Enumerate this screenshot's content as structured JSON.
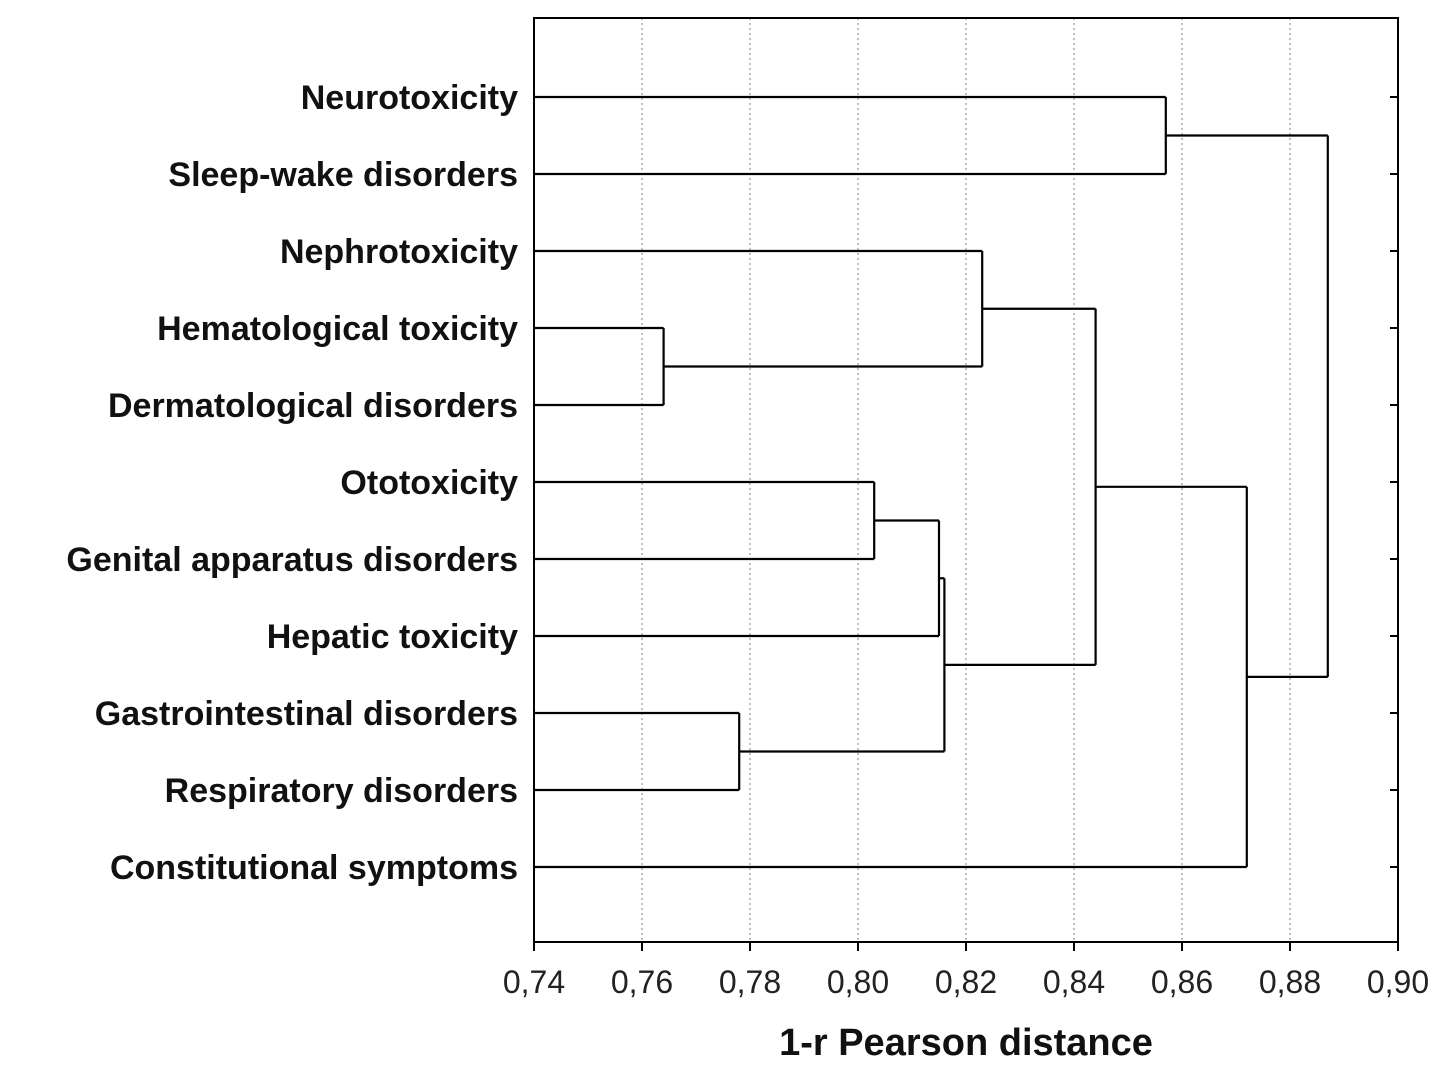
{
  "chart_data": {
    "type": "dendrogram",
    "title": "",
    "xlabel": "1-r Pearson distance",
    "ylabel": "",
    "xlim": [
      0.74,
      0.9
    ],
    "x_ticks": [
      "0,74",
      "0,76",
      "0,78",
      "0,80",
      "0,82",
      "0,84",
      "0,86",
      "0,88",
      "0,90"
    ],
    "x_tick_values": [
      0.74,
      0.76,
      0.78,
      0.8,
      0.82,
      0.84,
      0.86,
      0.88,
      0.9
    ],
    "grid": "vertical dotted",
    "leaves": [
      "Neurotoxicity",
      "Sleep-wake disorders",
      "Nephrotoxicity",
      "Hematological toxicity",
      "Dermatological disorders",
      "Ototoxicity",
      "Genital apparatus disorders",
      "Hepatic toxicity",
      "Gastrointestinal disorders",
      "Respiratory disorders",
      "Constitutional symptoms"
    ],
    "merges": [
      {
        "id": "m1",
        "left": "Hematological toxicity",
        "right": "Dermatological disorders",
        "distance": 0.764
      },
      {
        "id": "m2",
        "left": "Gastrointestinal disorders",
        "right": "Respiratory disorders",
        "distance": 0.778
      },
      {
        "id": "m3",
        "left": "Ototoxicity",
        "right": "Genital apparatus disorders",
        "distance": 0.803
      },
      {
        "id": "m4",
        "left": "m3",
        "right": "Hepatic toxicity",
        "distance": 0.815
      },
      {
        "id": "m5",
        "left": "m4",
        "right": "m2",
        "distance": 0.816
      },
      {
        "id": "m6",
        "left": "Nephrotoxicity",
        "right": "m1",
        "distance": 0.823
      },
      {
        "id": "m7",
        "left": "m6",
        "right": "m5",
        "distance": 0.844
      },
      {
        "id": "m8",
        "left": "Neurotoxicity",
        "right": "Sleep-wake disorders",
        "distance": 0.857
      },
      {
        "id": "m9",
        "left": "m7",
        "right": "Constitutional symptoms",
        "distance": 0.872
      },
      {
        "id": "m10",
        "left": "m8",
        "right": "m9",
        "distance": 0.887
      }
    ]
  }
}
